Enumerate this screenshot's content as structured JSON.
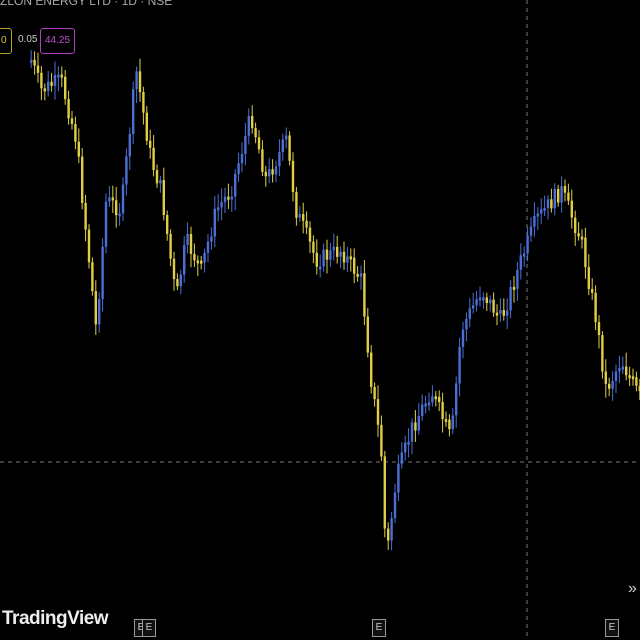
{
  "header": {
    "title": "ZLON ENERGY LTD · 1D · NSE"
  },
  "badges": [
    "0",
    "0.05",
    "44.25"
  ],
  "watermark": "TradingView",
  "event_markers": [
    "E",
    "E",
    "E",
    "E"
  ],
  "nav_arrow": "»"
}
